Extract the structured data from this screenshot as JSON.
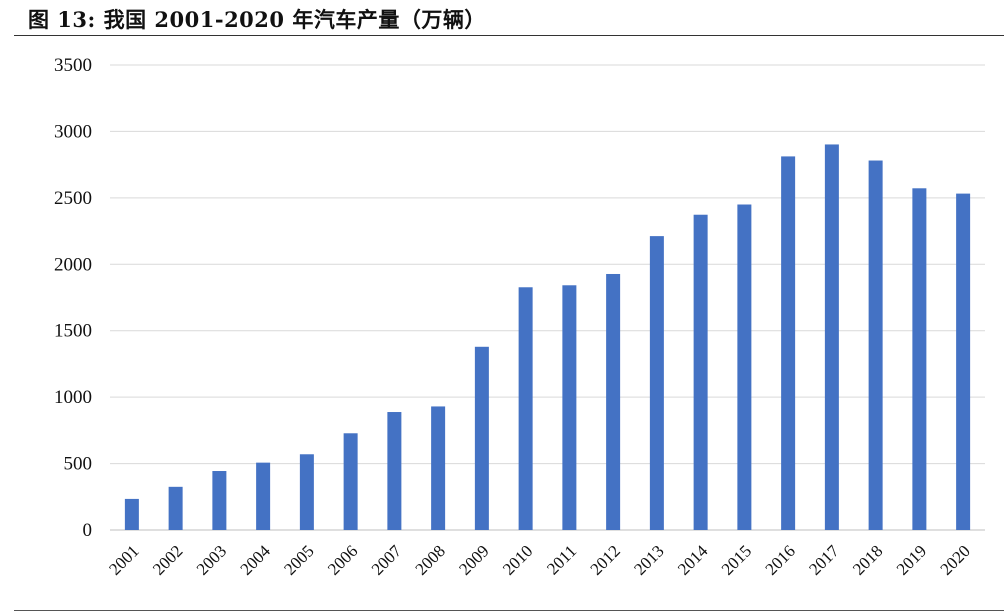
{
  "figure": {
    "title": "图 13:  我国 2001-2020 年汽车产量（万辆）"
  },
  "chart_data": {
    "type": "bar",
    "title": "图 13:  我国 2001-2020 年汽车产量（万辆）",
    "xlabel": "",
    "ylabel": "",
    "categories": [
      "2001",
      "2002",
      "2003",
      "2004",
      "2005",
      "2006",
      "2007",
      "2008",
      "2009",
      "2010",
      "2011",
      "2012",
      "2013",
      "2014",
      "2015",
      "2016",
      "2017",
      "2018",
      "2019",
      "2020"
    ],
    "values": [
      234,
      325,
      444,
      507,
      570,
      728,
      888,
      930,
      1379,
      1827,
      1842,
      1927,
      2212,
      2373,
      2450,
      2812,
      2902,
      2781,
      2572,
      2532
    ],
    "ylim": [
      0,
      3500
    ],
    "yticks": [
      0,
      500,
      1000,
      1500,
      2000,
      2500,
      3000,
      3500
    ],
    "grid": true,
    "legend": "none",
    "bar_color": "#4472C4",
    "grid_color": "#D9D9D9"
  }
}
